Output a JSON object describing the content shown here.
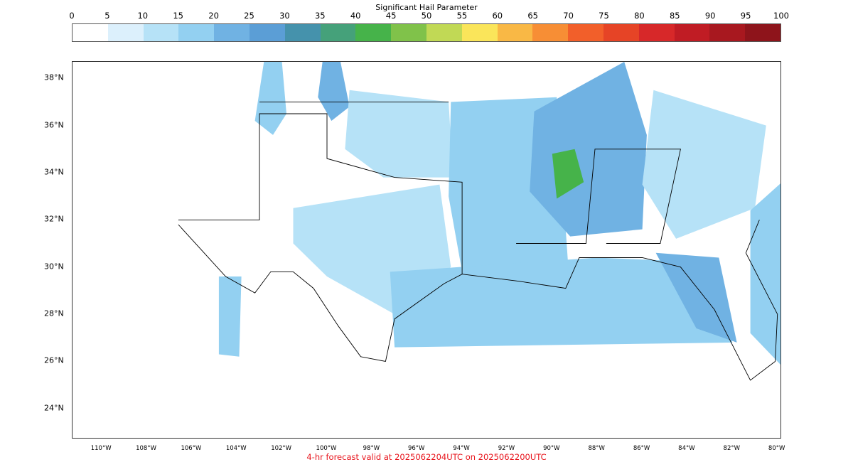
{
  "title": "Significant Hail Parameter",
  "footer": "4-hr forecast valid at 2025062204UTC on 2025062200UTC",
  "colorbar": {
    "ticks": [
      "0",
      "5",
      "10",
      "15",
      "20",
      "25",
      "30",
      "35",
      "40",
      "45",
      "50",
      "55",
      "60",
      "65",
      "70",
      "75",
      "80",
      "85",
      "90",
      "95",
      "100"
    ],
    "colors": [
      "#ffffff",
      "#dcf0fc",
      "#b6e2f7",
      "#93d0f1",
      "#70b2e3",
      "#5b9ed6",
      "#4592ac",
      "#45a17a",
      "#46b34a",
      "#80c24a",
      "#c1d955",
      "#fae55a",
      "#f9b845",
      "#f78e35",
      "#f25f2a",
      "#e64426",
      "#d72829",
      "#c01c24",
      "#a8181f",
      "#8e141b"
    ]
  },
  "axes": {
    "lat_labels": [
      "38°N",
      "36°N",
      "34°N",
      "32°N",
      "30°N",
      "28°N",
      "26°N",
      "24°N"
    ],
    "lon_labels": [
      "110°W",
      "108°W",
      "106°W",
      "104°W",
      "102°W",
      "100°W",
      "98°W",
      "96°W",
      "94°W",
      "92°W",
      "90°W",
      "88°W",
      "86°W",
      "84°W",
      "82°W",
      "80°W"
    ]
  },
  "map_data": {
    "extent": {
      "lon": [
        -111.3,
        -79.8
      ],
      "lat": [
        22.7,
        38.7
      ]
    },
    "level_colors": [
      "#dcf0fc",
      "#b6e2f7",
      "#93d0f1",
      "#70b2e3",
      "#46b34a"
    ],
    "regions": [
      {
        "name": "panhandle-west",
        "level": 2,
        "points": [
          [
            -102.8,
            38.7
          ],
          [
            -102.0,
            38.7
          ],
          [
            -101.8,
            36.5
          ],
          [
            -102.4,
            35.6
          ],
          [
            -103.2,
            36.2
          ]
        ]
      },
      {
        "name": "kansas-band",
        "level": 3,
        "points": [
          [
            -100.2,
            38.7
          ],
          [
            -99.4,
            38.7
          ],
          [
            -99.0,
            36.8
          ],
          [
            -99.8,
            36.2
          ],
          [
            -100.4,
            37.2
          ]
        ]
      },
      {
        "name": "oklahoma-central",
        "level": 1,
        "points": [
          [
            -99.0,
            37.5
          ],
          [
            -94.6,
            37.0
          ],
          [
            -94.4,
            33.8
          ],
          [
            -97.5,
            33.8
          ],
          [
            -99.2,
            35.0
          ]
        ]
      },
      {
        "name": "texas-central",
        "level": 1,
        "points": [
          [
            -101.5,
            32.5
          ],
          [
            -95.0,
            33.5
          ],
          [
            -94.5,
            30.0
          ],
          [
            -97.0,
            28.0
          ],
          [
            -100.0,
            29.6
          ],
          [
            -101.5,
            31.0
          ]
        ]
      },
      {
        "name": "west-texas-plume",
        "level": 2,
        "points": [
          [
            -104.8,
            29.6
          ],
          [
            -103.8,
            29.6
          ],
          [
            -103.9,
            26.2
          ],
          [
            -104.8,
            26.3
          ]
        ]
      },
      {
        "name": "arkansas-louisiana",
        "level": 2,
        "points": [
          [
            -94.5,
            37.0
          ],
          [
            -89.8,
            37.2
          ],
          [
            -89.3,
            30.2
          ],
          [
            -94.0,
            29.8
          ],
          [
            -94.6,
            33.0
          ]
        ]
      },
      {
        "name": "mississippi-core",
        "level": 3,
        "points": [
          [
            -90.8,
            36.6
          ],
          [
            -86.8,
            38.7
          ],
          [
            -85.8,
            35.6
          ],
          [
            -86.0,
            31.6
          ],
          [
            -89.2,
            31.3
          ],
          [
            -91.0,
            33.2
          ]
        ]
      },
      {
        "name": "mississippi-peak",
        "level": 4,
        "points": [
          [
            -90.0,
            34.8
          ],
          [
            -89.0,
            35.0
          ],
          [
            -88.6,
            33.6
          ],
          [
            -89.8,
            32.9
          ]
        ]
      },
      {
        "name": "georgia-carolina",
        "level": 1,
        "points": [
          [
            -85.5,
            37.5
          ],
          [
            -80.5,
            36.0
          ],
          [
            -81.0,
            32.5
          ],
          [
            -84.5,
            31.2
          ],
          [
            -86.0,
            33.5
          ]
        ]
      },
      {
        "name": "gulf-offshore",
        "level": 2,
        "points": [
          [
            -97.2,
            29.8
          ],
          [
            -88.0,
            30.4
          ],
          [
            -83.0,
            30.2
          ],
          [
            -82.0,
            26.8
          ],
          [
            -97.0,
            26.6
          ]
        ]
      },
      {
        "name": "florida-band",
        "level": 3,
        "points": [
          [
            -85.4,
            30.6
          ],
          [
            -82.6,
            30.4
          ],
          [
            -81.8,
            26.8
          ],
          [
            -83.6,
            27.4
          ]
        ]
      },
      {
        "name": "atlantic-offshore",
        "level": 2,
        "points": [
          [
            -81.2,
            32.4
          ],
          [
            -79.8,
            33.6
          ],
          [
            -79.8,
            25.8
          ],
          [
            -81.2,
            27.2
          ]
        ]
      }
    ],
    "borders": [
      {
        "name": "texas-border",
        "points": [
          [
            -106.6,
            32.0
          ],
          [
            -103.0,
            32.0
          ],
          [
            -103.0,
            36.5
          ],
          [
            -100.0,
            36.5
          ],
          [
            -100.0,
            34.6
          ],
          [
            -97.0,
            33.8
          ],
          [
            -94.0,
            33.6
          ],
          [
            -94.0,
            29.7
          ],
          [
            -94.8,
            29.3
          ],
          [
            -97.0,
            27.8
          ],
          [
            -97.4,
            26.0
          ],
          [
            -98.5,
            26.2
          ],
          [
            -99.5,
            27.5
          ],
          [
            -100.6,
            29.1
          ],
          [
            -101.5,
            29.8
          ],
          [
            -102.5,
            29.8
          ],
          [
            -103.2,
            28.9
          ],
          [
            -104.5,
            29.6
          ],
          [
            -106.6,
            31.8
          ]
        ]
      },
      {
        "name": "oklahoma-north",
        "points": [
          [
            -103.0,
            37.0
          ],
          [
            -94.6,
            37.0
          ]
        ]
      },
      {
        "name": "gulf-coast",
        "points": [
          [
            -94.0,
            29.7
          ],
          [
            -91.5,
            29.4
          ],
          [
            -89.4,
            29.1
          ],
          [
            -88.8,
            30.4
          ],
          [
            -86.0,
            30.4
          ],
          [
            -84.3,
            30.0
          ],
          [
            -82.8,
            28.2
          ],
          [
            -81.2,
            25.2
          ],
          [
            -80.1,
            26.0
          ],
          [
            -80.0,
            28.0
          ],
          [
            -81.4,
            30.6
          ],
          [
            -80.8,
            32.0
          ]
        ]
      },
      {
        "name": "southeast-states",
        "points": [
          [
            -91.6,
            31.0
          ],
          [
            -88.5,
            31.0
          ],
          [
            -88.1,
            35.0
          ],
          [
            -84.3,
            35.0
          ],
          [
            -85.2,
            31.0
          ],
          [
            -87.6,
            31.0
          ]
        ]
      }
    ]
  }
}
